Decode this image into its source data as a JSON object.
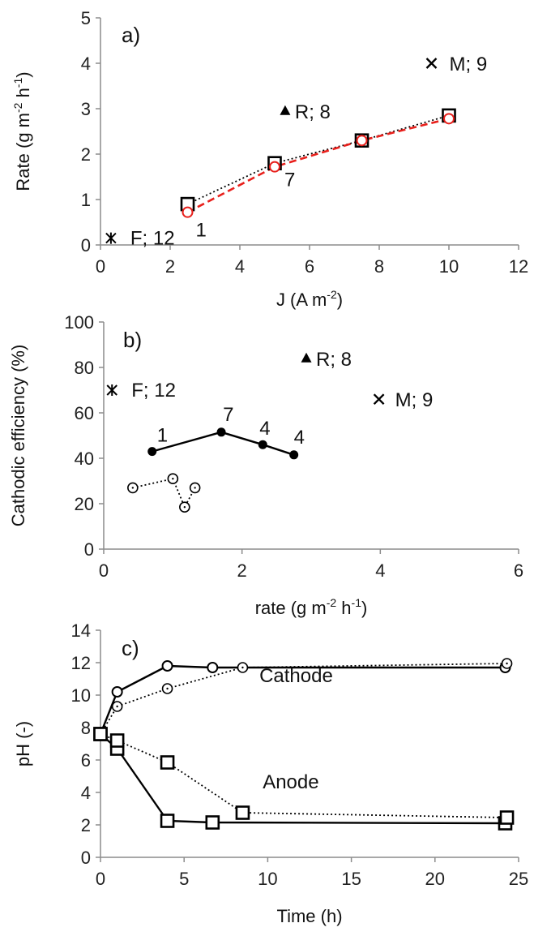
{
  "chart_data": [
    {
      "type": "scatter",
      "panel_label": "a)",
      "xlabel": "J (A m",
      "xlabel_sup": "-2",
      "xlabel_tail": ")",
      "ylabel": "Rate (g m",
      "ylabel_sup1": "-2",
      "ylabel_mid": " h",
      "ylabel_sup2": "-1",
      "ylabel_tail": ")",
      "xlim": [
        0,
        12
      ],
      "ylim": [
        0,
        5
      ],
      "xticks": [
        "0",
        "2",
        "4",
        "6",
        "8",
        "10",
        "12"
      ],
      "yticks": [
        "0",
        "1",
        "2",
        "3",
        "4",
        "5"
      ],
      "grid": false,
      "series": [
        {
          "marker": "square",
          "line": "dotted",
          "color": "#000000",
          "x": [
            2.5,
            5,
            7.5,
            10
          ],
          "y": [
            0.9,
            1.8,
            2.3,
            2.85
          ]
        },
        {
          "marker": "circle",
          "line": "dashed",
          "color": "#e8201c",
          "x": [
            2.5,
            5,
            7.5,
            10
          ],
          "y": [
            0.72,
            1.72,
            2.3,
            2.78
          ]
        },
        {
          "marker": "star",
          "line": "none",
          "color": "#000000",
          "x": [
            0.3
          ],
          "y": [
            0.15
          ]
        },
        {
          "marker": "triangle",
          "line": "none",
          "color": "#000000",
          "x": [
            5.3
          ],
          "y": [
            2.95
          ]
        },
        {
          "marker": "cross",
          "line": "none",
          "color": "#000000",
          "x": [
            9.5
          ],
          "y": [
            4.0
          ]
        }
      ],
      "annotations": [
        {
          "text": "F; 12",
          "x": 0.3,
          "y": 0.15,
          "color": "#000000"
        },
        {
          "text": "R; 8",
          "x": 5.3,
          "y": 2.95,
          "color": "#000000"
        },
        {
          "text": "M; 9",
          "x": 9.5,
          "y": 4.0,
          "color": "#000000"
        },
        {
          "text": "1",
          "x": 2.5,
          "y": 0.72,
          "color": "#e8201c"
        },
        {
          "text": "7",
          "x": 5,
          "y": 1.72,
          "color": "#e8201c"
        }
      ]
    },
    {
      "type": "scatter",
      "panel_label": "b)",
      "xlabel": "rate (g m",
      "xlabel_sup": "-2",
      "xlabel_mid": " h",
      "xlabel_sup2": "-1",
      "xlabel_tail": ")",
      "ylabel": "Cathodic efficiency (%)",
      "xlim": [
        0,
        6
      ],
      "ylim": [
        0,
        100
      ],
      "xticks": [
        "0",
        "2",
        "4",
        "6"
      ],
      "yticks": [
        "0",
        "20",
        "40",
        "60",
        "80",
        "100"
      ],
      "grid": false,
      "series": [
        {
          "marker": "filled-circle",
          "line": "solid",
          "color": "#000000",
          "x": [
            0.7,
            1.7,
            2.3,
            2.75
          ],
          "y": [
            43,
            51.5,
            46,
            41.5
          ]
        },
        {
          "marker": "dotted-circle",
          "line": "dotted",
          "color": "#000000",
          "x": [
            0.42,
            1.0,
            1.17,
            1.32
          ],
          "y": [
            27,
            31,
            18.5,
            27
          ]
        },
        {
          "marker": "star",
          "line": "none",
          "color": "#000000",
          "x": [
            0.12
          ],
          "y": [
            70
          ]
        },
        {
          "marker": "triangle",
          "line": "none",
          "color": "#000000",
          "x": [
            2.93
          ],
          "y": [
            84
          ]
        },
        {
          "marker": "cross",
          "line": "none",
          "color": "#000000",
          "x": [
            3.98
          ],
          "y": [
            66
          ]
        }
      ],
      "annotations": [
        {
          "text": "F; 12",
          "x": 0.12,
          "y": 70,
          "color": "#000000"
        },
        {
          "text": "R; 8",
          "x": 2.93,
          "y": 84,
          "color": "#000000"
        },
        {
          "text": "M; 9",
          "x": 3.98,
          "y": 66,
          "color": "#000000"
        },
        {
          "text": "1",
          "x": 0.7,
          "y": 43,
          "color": "#000000"
        },
        {
          "text": "7",
          "x": 1.7,
          "y": 51.5,
          "color": "#000000"
        },
        {
          "text": "4",
          "x": 2.3,
          "y": 46,
          "color": "#000000"
        },
        {
          "text": "4",
          "x": 2.75,
          "y": 41.5,
          "color": "#000000"
        }
      ]
    },
    {
      "type": "line",
      "panel_label": "c)",
      "xlabel": "Time (h)",
      "ylabel": "pH (-)",
      "xlim": [
        0,
        25
      ],
      "ylim": [
        0,
        14
      ],
      "xticks": [
        "0",
        "5",
        "10",
        "15",
        "20",
        "25"
      ],
      "yticks": [
        "0",
        "2",
        "4",
        "6",
        "8",
        "10",
        "12",
        "14"
      ],
      "grid": false,
      "series": [
        {
          "marker": "circle",
          "line": "solid",
          "color": "#000000",
          "x": [
            0,
            1,
            4,
            6.7,
            24.2
          ],
          "y": [
            7.6,
            10.2,
            11.8,
            11.7,
            11.7
          ]
        },
        {
          "marker": "dotted-circle",
          "line": "dotted",
          "color": "#000000",
          "x": [
            0,
            1,
            4,
            8.5,
            24.3
          ],
          "y": [
            7.6,
            9.3,
            10.4,
            11.7,
            11.95
          ]
        },
        {
          "marker": "square",
          "line": "solid",
          "color": "#000000",
          "x": [
            0,
            1,
            4,
            6.7,
            24.2
          ],
          "y": [
            7.6,
            6.7,
            2.25,
            2.15,
            2.1
          ]
        },
        {
          "marker": "square",
          "line": "dotted",
          "color": "#000000",
          "x": [
            0,
            1,
            4,
            8.5,
            24.3
          ],
          "y": [
            7.6,
            7.2,
            5.85,
            2.75,
            2.45
          ]
        }
      ],
      "annotations": [
        {
          "text": "Cathode",
          "x": 9.5,
          "y": 10.8,
          "color": "#000000"
        },
        {
          "text": "Anode",
          "x": 9.7,
          "y": 4.25,
          "color": "#000000"
        }
      ]
    }
  ]
}
